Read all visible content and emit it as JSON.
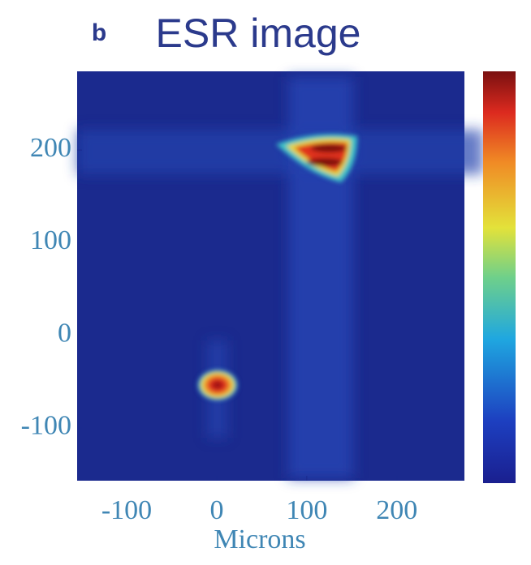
{
  "chart_data": {
    "type": "heatmap",
    "panel_label": "b",
    "title": "ESR image",
    "xlabel": "Microns",
    "xlim": [
      -155,
      275
    ],
    "xticks": [
      -100,
      0,
      100,
      200
    ],
    "ylim": [
      -157,
      285
    ],
    "yticks": [
      -100,
      0,
      100,
      200
    ]
  }
}
